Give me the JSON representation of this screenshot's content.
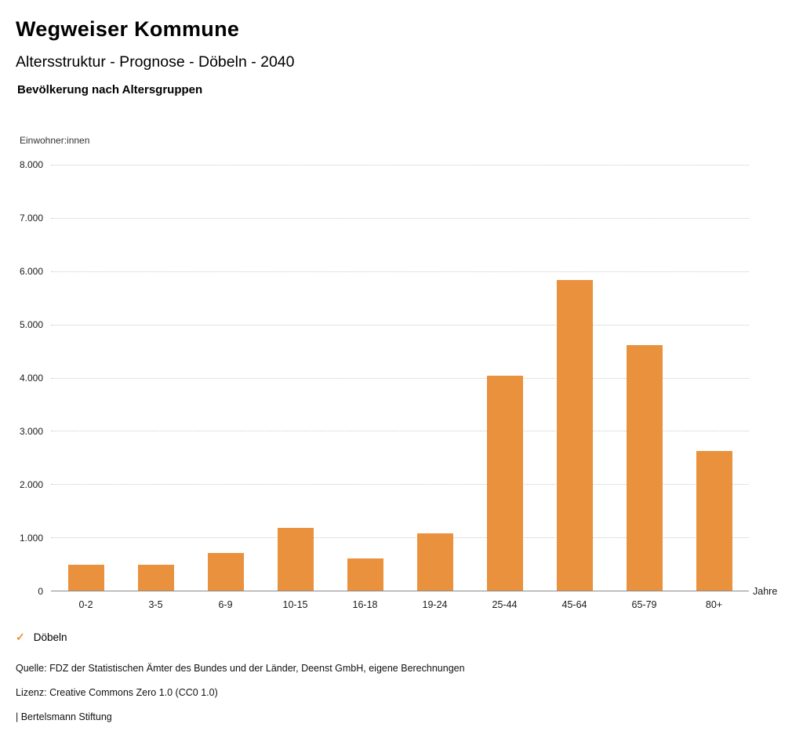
{
  "header": {
    "title": "Wegweiser Kommune",
    "subtitle": "Altersstruktur - Prognose - Döbeln - 2040",
    "section_title": "Bevölkerung nach Altersgruppen"
  },
  "chart_data": {
    "type": "bar",
    "title": "Bevölkerung nach Altersgruppen",
    "ylabel": "Einwohner:innen",
    "xlabel": "Jahre",
    "categories": [
      "0-2",
      "3-5",
      "6-9",
      "10-15",
      "16-18",
      "19-24",
      "25-44",
      "45-64",
      "65-79",
      "80+"
    ],
    "series": [
      {
        "name": "Döbeln",
        "values": [
          480,
          490,
          705,
          1180,
          605,
          1080,
          4040,
          5830,
          4610,
          2620
        ]
      }
    ],
    "ylim": [
      0,
      8000
    ],
    "ytick_values": [
      0,
      1000,
      2000,
      3000,
      4000,
      5000,
      6000,
      7000,
      8000
    ],
    "ytick_labels": [
      "0",
      "1.000",
      "2.000",
      "3.000",
      "4.000",
      "5.000",
      "6.000",
      "7.000",
      "8.000"
    ],
    "grid": "horizontal dotted",
    "legend_position": "bottom-left",
    "bar_color": "#E9913C"
  },
  "legend": {
    "check_icon": "✓",
    "label": "Döbeln",
    "accent_color": "#E9913C"
  },
  "footer": {
    "source": "Quelle: FDZ der Statistischen Ämter des Bundes und der Länder, Deenst GmbH, eigene Berechnungen",
    "license": "Lizenz: Creative Commons Zero 1.0 (CC0 1.0)",
    "attribution": "| Bertelsmann Stiftung"
  }
}
